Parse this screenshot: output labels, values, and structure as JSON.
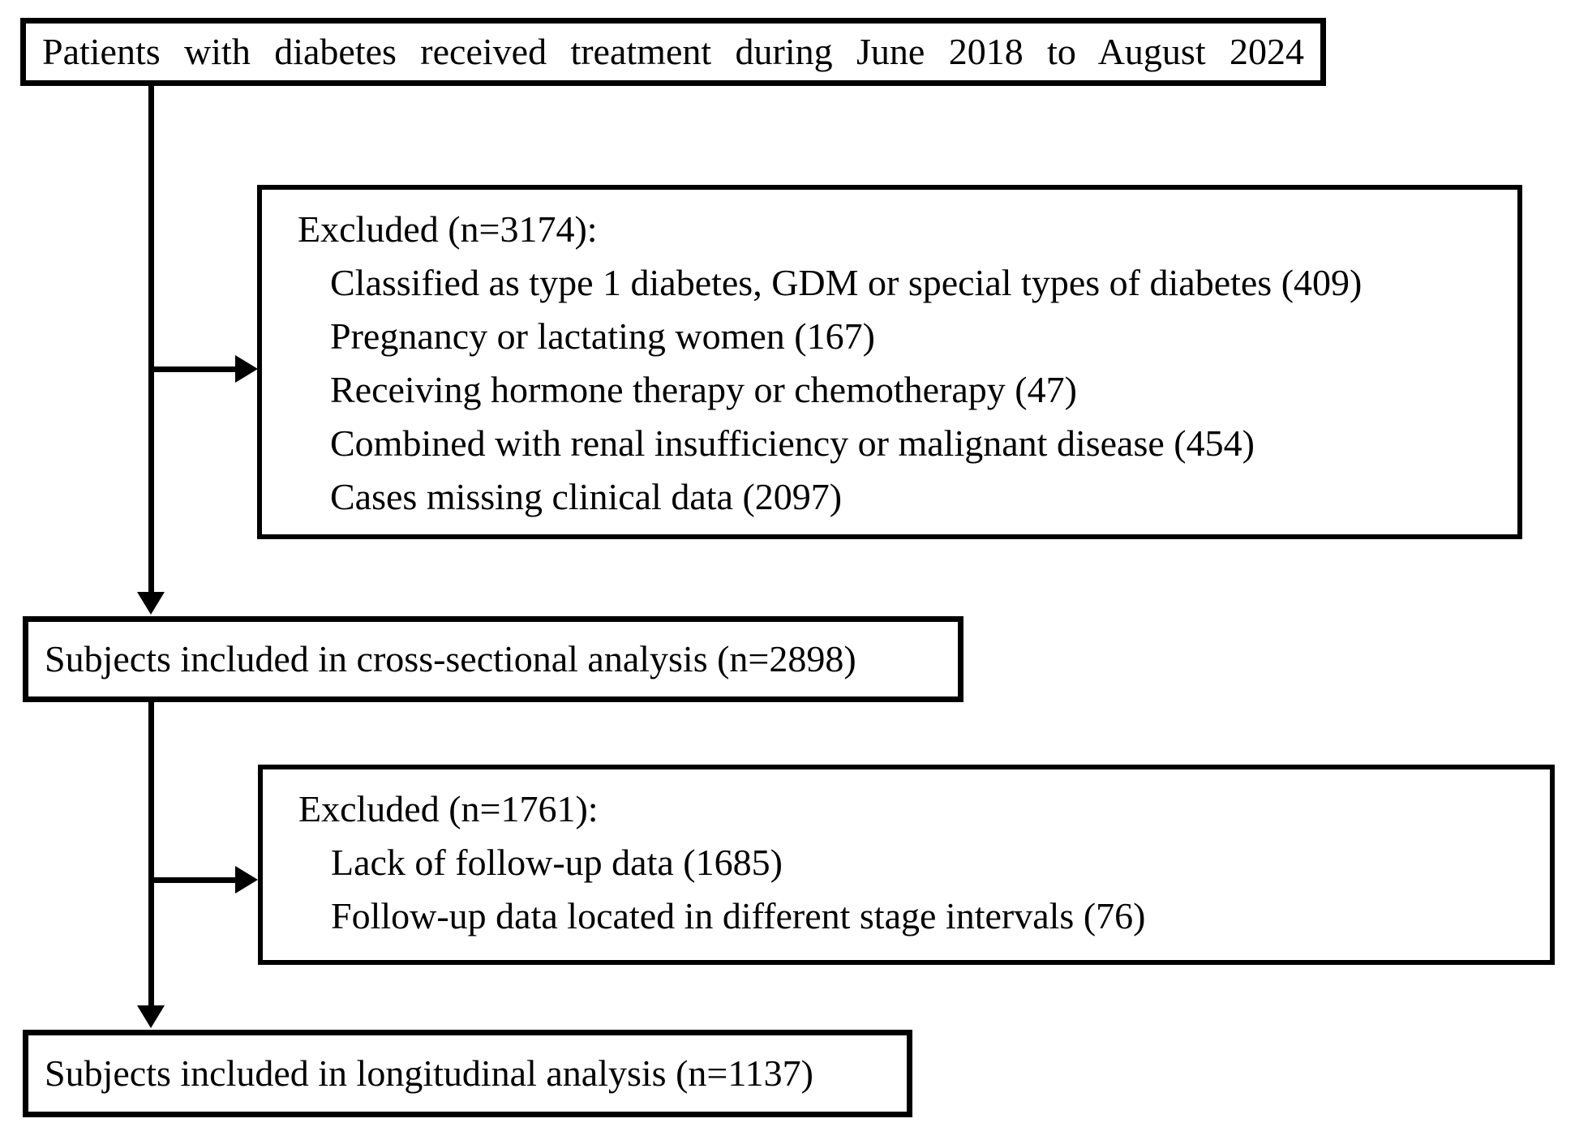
{
  "palette": {
    "background": "#ffffff",
    "line_color": "#000000",
    "text_color": "#000000"
  },
  "flowchart": {
    "start_box": {
      "text": "Patients with diabetes received treatment during June 2018 to August 2024"
    },
    "exclusion_box_1": {
      "header": "Excluded (n=3174):",
      "items": [
        "Classified as type 1 diabetes, GDM or special types of diabetes (409)",
        "Pregnancy or lactating women (167)",
        "Receiving hormone therapy or chemotherapy (47)",
        "Combined with renal insufficiency or malignant disease (454)",
        "Cases missing clinical data (2097)"
      ]
    },
    "cross_sectional_box": {
      "text": "Subjects included in cross-sectional analysis (n=2898)"
    },
    "exclusion_box_2": {
      "header": "Excluded (n=1761):",
      "items": [
        "Lack of follow-up data (1685)",
        "Follow-up data located in different stage intervals (76)"
      ]
    },
    "longitudinal_box": {
      "text": "Subjects included in longitudinal analysis (n=1137)"
    }
  }
}
